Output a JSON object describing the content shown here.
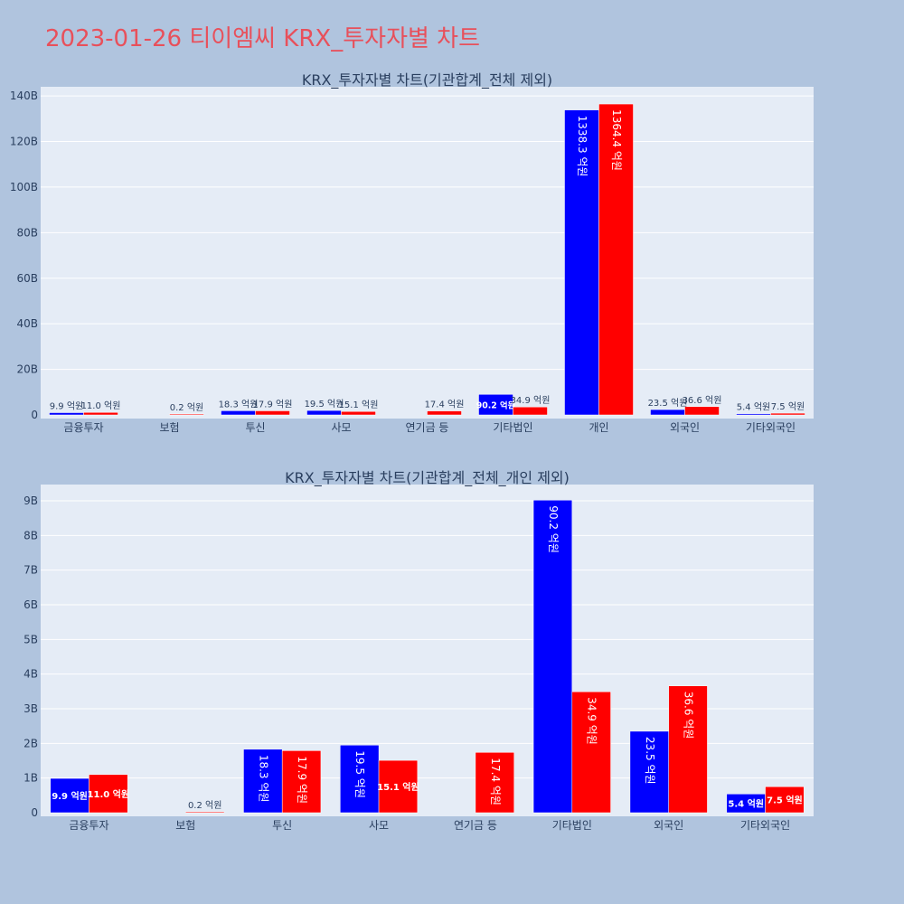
{
  "page_title": "2023-01-26 티이엠씨 KRX_투자자별 차트",
  "colors": {
    "buy": "#0000ff",
    "sell": "#ff0000",
    "plot_bg": "#e5ecf6",
    "page_bg": "#b0c4de"
  },
  "chart_data": [
    {
      "type": "bar",
      "title": "KRX_투자자별 차트(기관합계_전체 제외)",
      "categories": [
        "금융투자",
        "보험",
        "투신",
        "사모",
        "연기금 등",
        "기타법인",
        "개인",
        "외국인",
        "기타외국인"
      ],
      "series": [
        {
          "values": [
            0.99,
            0,
            1.83,
            1.95,
            0,
            9.02,
            133.83,
            2.35,
            0.54
          ],
          "labels": [
            "9.9 억원",
            "",
            "18.3 억원",
            "19.5 억원",
            "",
            "90.2 억원",
            "1338.3 억원",
            "23.5 억원",
            "5.4 억원"
          ]
        },
        {
          "values": [
            1.1,
            0.02,
            1.79,
            1.51,
            1.74,
            3.49,
            136.44,
            3.66,
            0.75
          ],
          "labels": [
            "11.0 억원",
            "0.2 억원",
            "17.9 억원",
            "15.1 억원",
            "17.4 억원",
            "34.9 억원",
            "1364.4 억원",
            "36.6 억원",
            "7.5 억원"
          ]
        }
      ],
      "yunit": "B",
      "ylim": [
        0,
        144
      ],
      "yticks": [
        0,
        20,
        40,
        60,
        80,
        100,
        120,
        140
      ],
      "ytick_labels": [
        "0",
        "20B",
        "40B",
        "60B",
        "80B",
        "100B",
        "120B",
        "140B"
      ],
      "grid": true
    },
    {
      "type": "bar",
      "title": "KRX_투자자별 차트(기관합계_전체_개인 제외)",
      "categories": [
        "금융투자",
        "보험",
        "투신",
        "사모",
        "연기금 등",
        "기타법인",
        "외국인",
        "기타외국인"
      ],
      "series": [
        {
          "values": [
            0.99,
            0,
            1.83,
            1.95,
            0,
            9.02,
            2.35,
            0.54
          ],
          "labels": [
            "9.9 억원",
            "",
            "18.3 억원",
            "19.5 억원",
            "",
            "90.2 억원",
            "23.5 억원",
            "5.4 억원"
          ]
        },
        {
          "values": [
            1.1,
            0.02,
            1.79,
            1.51,
            1.74,
            3.49,
            3.66,
            0.75
          ],
          "labels": [
            "11.0 억원",
            "0.2 억원",
            "17.9 억원",
            "15.1 억원",
            "17.4 억원",
            "34.9 억원",
            "36.6 억원",
            "7.5 억원"
          ]
        }
      ],
      "yunit": "B",
      "ylim": [
        0,
        9.47
      ],
      "yticks": [
        0,
        1,
        2,
        3,
        4,
        5,
        6,
        7,
        8,
        9
      ],
      "ytick_labels": [
        "0",
        "1B",
        "2B",
        "3B",
        "4B",
        "5B",
        "6B",
        "7B",
        "8B",
        "9B"
      ],
      "grid": true
    }
  ]
}
